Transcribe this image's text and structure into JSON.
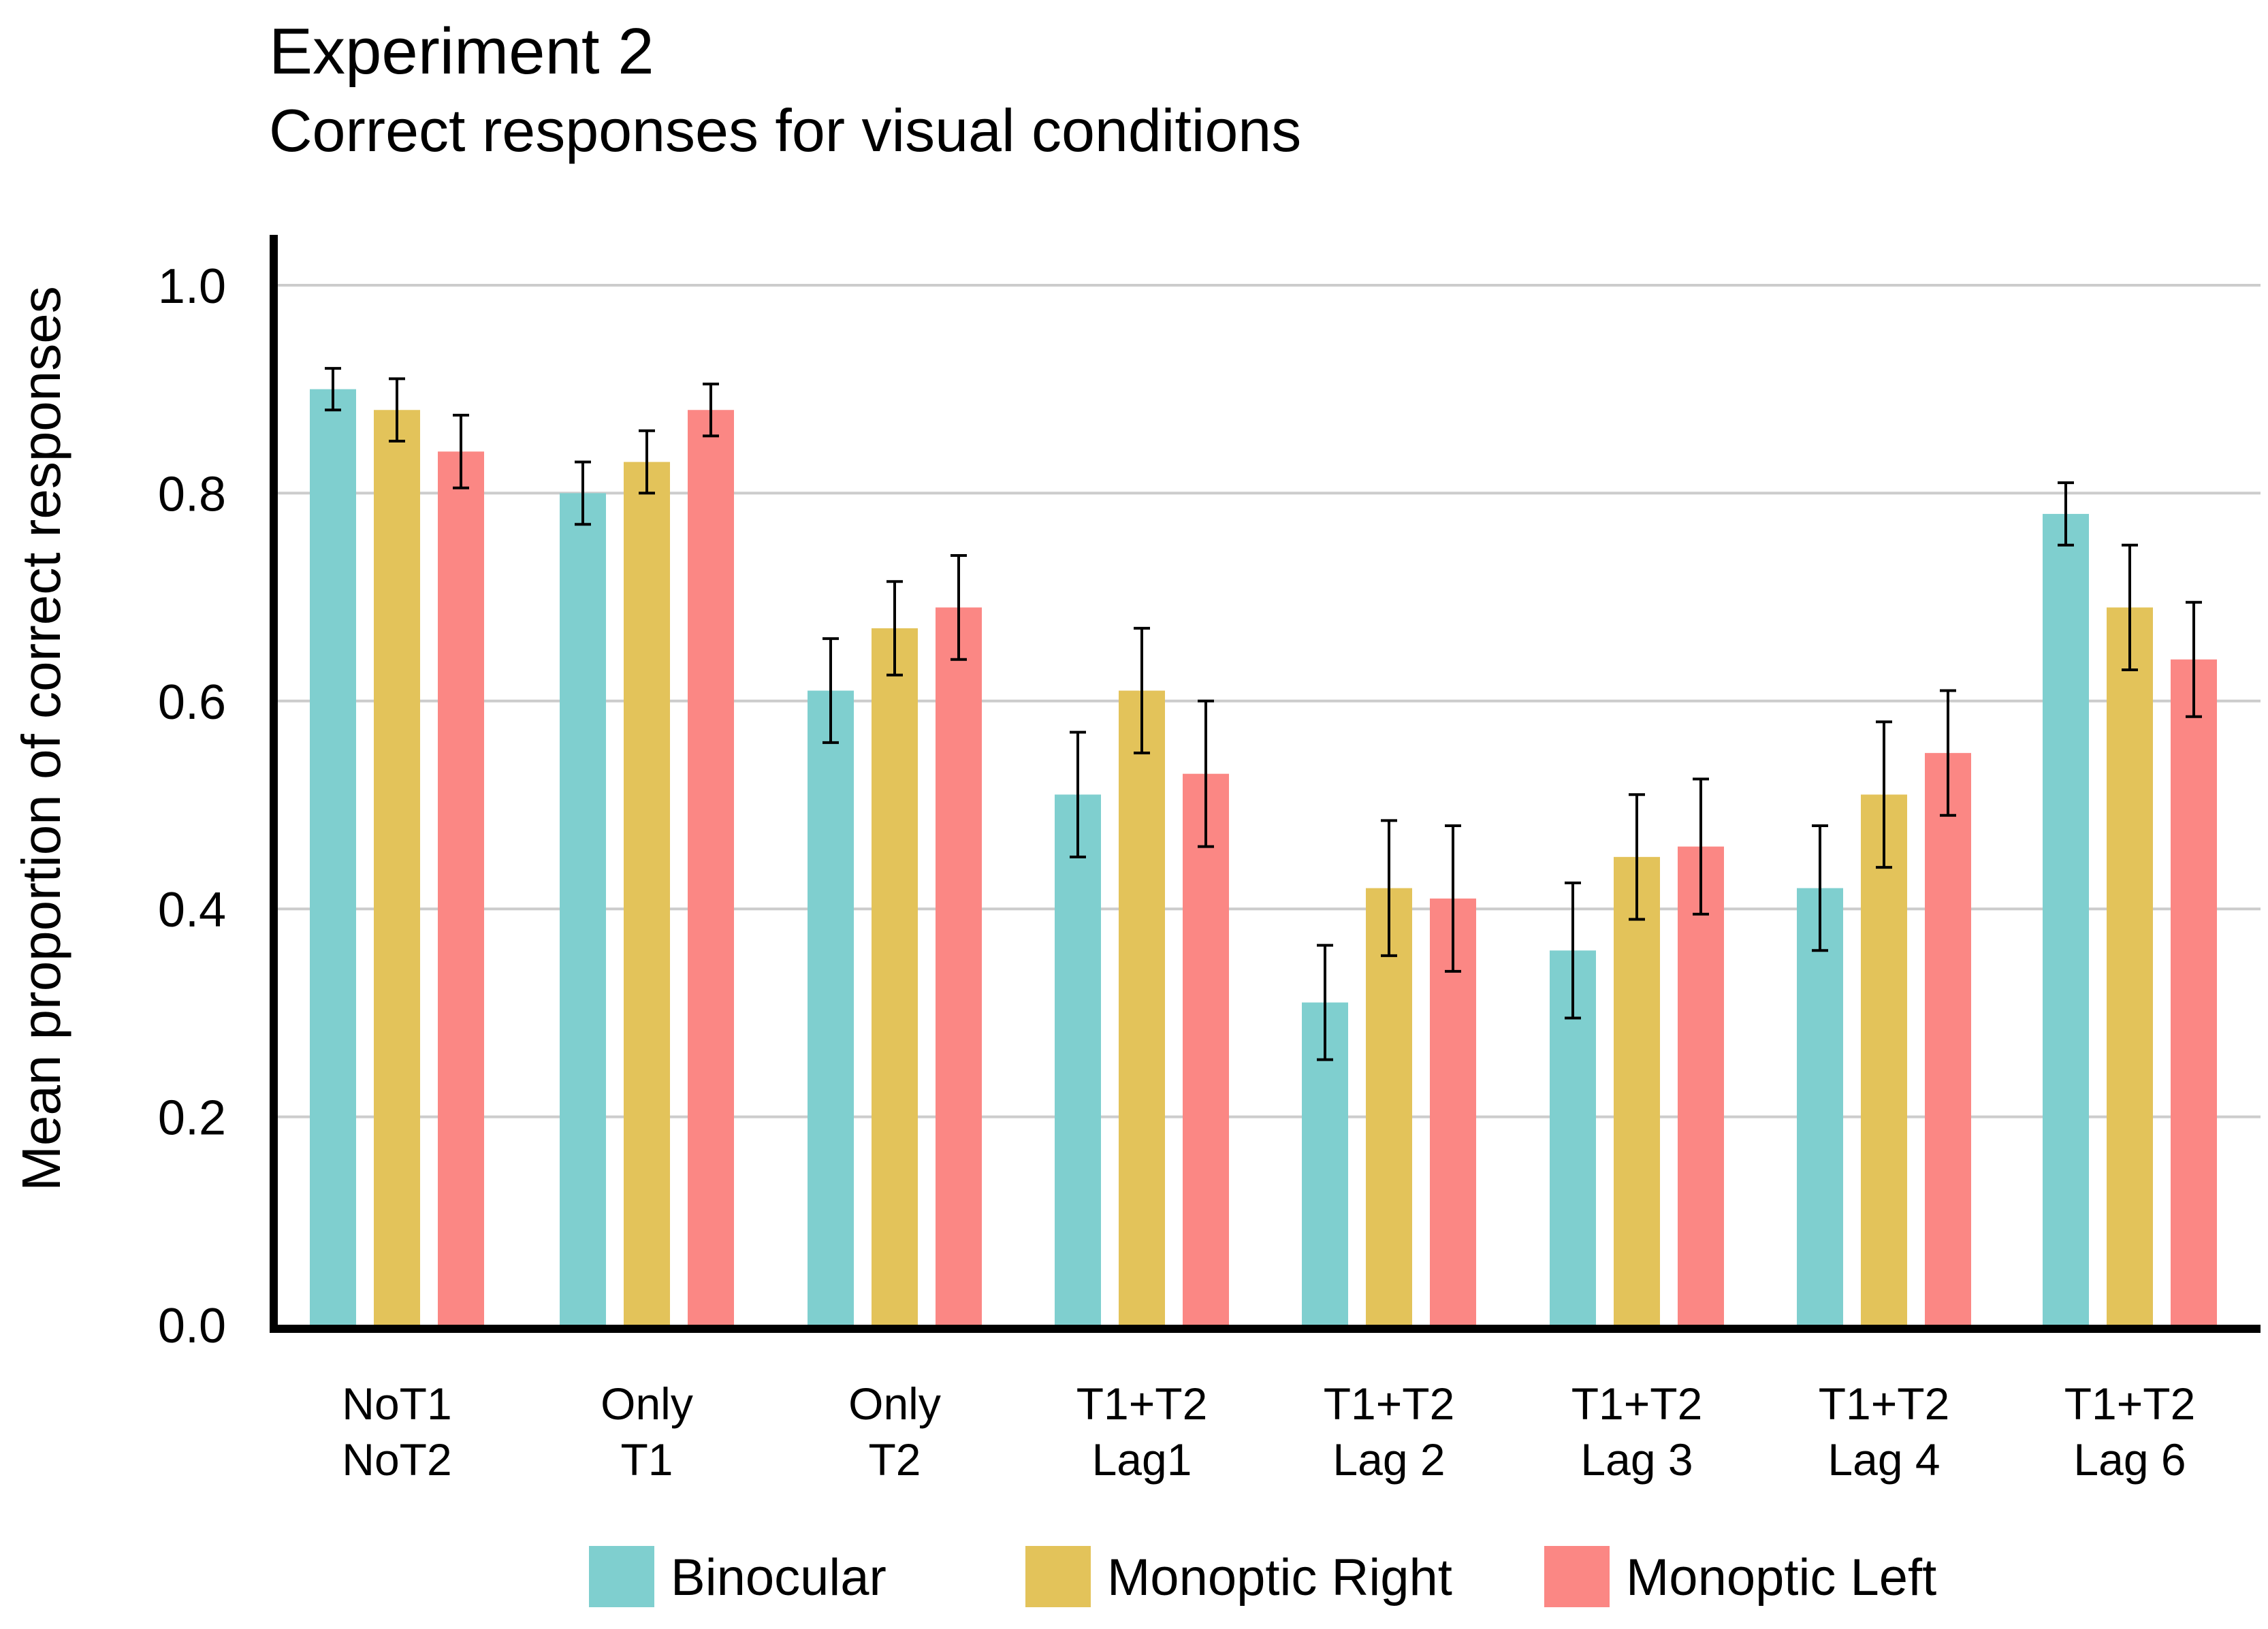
{
  "chart_data": {
    "type": "bar",
    "title": "Experiment 2",
    "subtitle": "Correct responses for visual conditions",
    "xlabel": "",
    "ylabel": "Mean proportion of correct responses",
    "ylim": [
      0,
      1.0
    ],
    "yticks": [
      "0.0",
      "0.2",
      "0.4",
      "0.6",
      "0.8",
      "1.0"
    ],
    "grid": true,
    "legend_position": "bottom",
    "categories": [
      [
        "NoT1",
        "NoT2"
      ],
      [
        "Only",
        "T1"
      ],
      [
        "Only",
        "T2"
      ],
      [
        "T1+T2",
        "Lag1"
      ],
      [
        "T1+T2",
        "Lag 2"
      ],
      [
        "T1+T2",
        "Lag 3"
      ],
      [
        "T1+T2",
        "Lag 4"
      ],
      [
        "T1+T2",
        "Lag 6"
      ]
    ],
    "series": [
      {
        "name": "Binocular",
        "color": "#7fcfcf",
        "values": [
          0.9,
          0.8,
          0.61,
          0.51,
          0.31,
          0.36,
          0.42,
          0.78
        ],
        "errors": [
          0.02,
          0.03,
          0.05,
          0.06,
          0.055,
          0.065,
          0.06,
          0.03
        ]
      },
      {
        "name": "Monoptic Right",
        "color": "#e3c35a",
        "values": [
          0.88,
          0.83,
          0.67,
          0.61,
          0.42,
          0.45,
          0.51,
          0.69
        ],
        "errors": [
          0.03,
          0.03,
          0.045,
          0.06,
          0.065,
          0.06,
          0.07,
          0.06
        ]
      },
      {
        "name": "Monoptic Left",
        "color": "#fb8784",
        "values": [
          0.84,
          0.88,
          0.69,
          0.53,
          0.41,
          0.46,
          0.55,
          0.64
        ],
        "errors": [
          0.035,
          0.025,
          0.05,
          0.07,
          0.07,
          0.065,
          0.06,
          0.055
        ]
      }
    ]
  }
}
